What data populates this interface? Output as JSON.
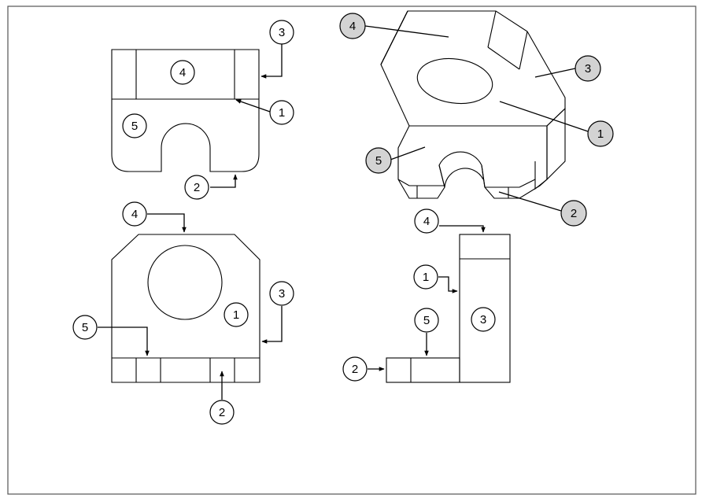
{
  "colors": {
    "line": "#000000",
    "balloon_fill_plain": "#ffffff",
    "balloon_fill_shaded": "#d3d3d3",
    "background": "#ffffff"
  },
  "views": {
    "top_view": {
      "balloons": [
        {
          "label": "3"
        },
        {
          "label": "4"
        },
        {
          "label": "1"
        },
        {
          "label": "5"
        },
        {
          "label": "2"
        }
      ]
    },
    "isometric_view": {
      "balloons": [
        {
          "label": "4"
        },
        {
          "label": "3"
        },
        {
          "label": "1"
        },
        {
          "label": "5"
        },
        {
          "label": "2"
        }
      ]
    },
    "front_view": {
      "balloons": [
        {
          "label": "4"
        },
        {
          "label": "3"
        },
        {
          "label": "1"
        },
        {
          "label": "5"
        },
        {
          "label": "2"
        }
      ]
    },
    "side_view": {
      "balloons": [
        {
          "label": "4"
        },
        {
          "label": "1"
        },
        {
          "label": "3"
        },
        {
          "label": "5"
        },
        {
          "label": "2"
        }
      ]
    }
  }
}
